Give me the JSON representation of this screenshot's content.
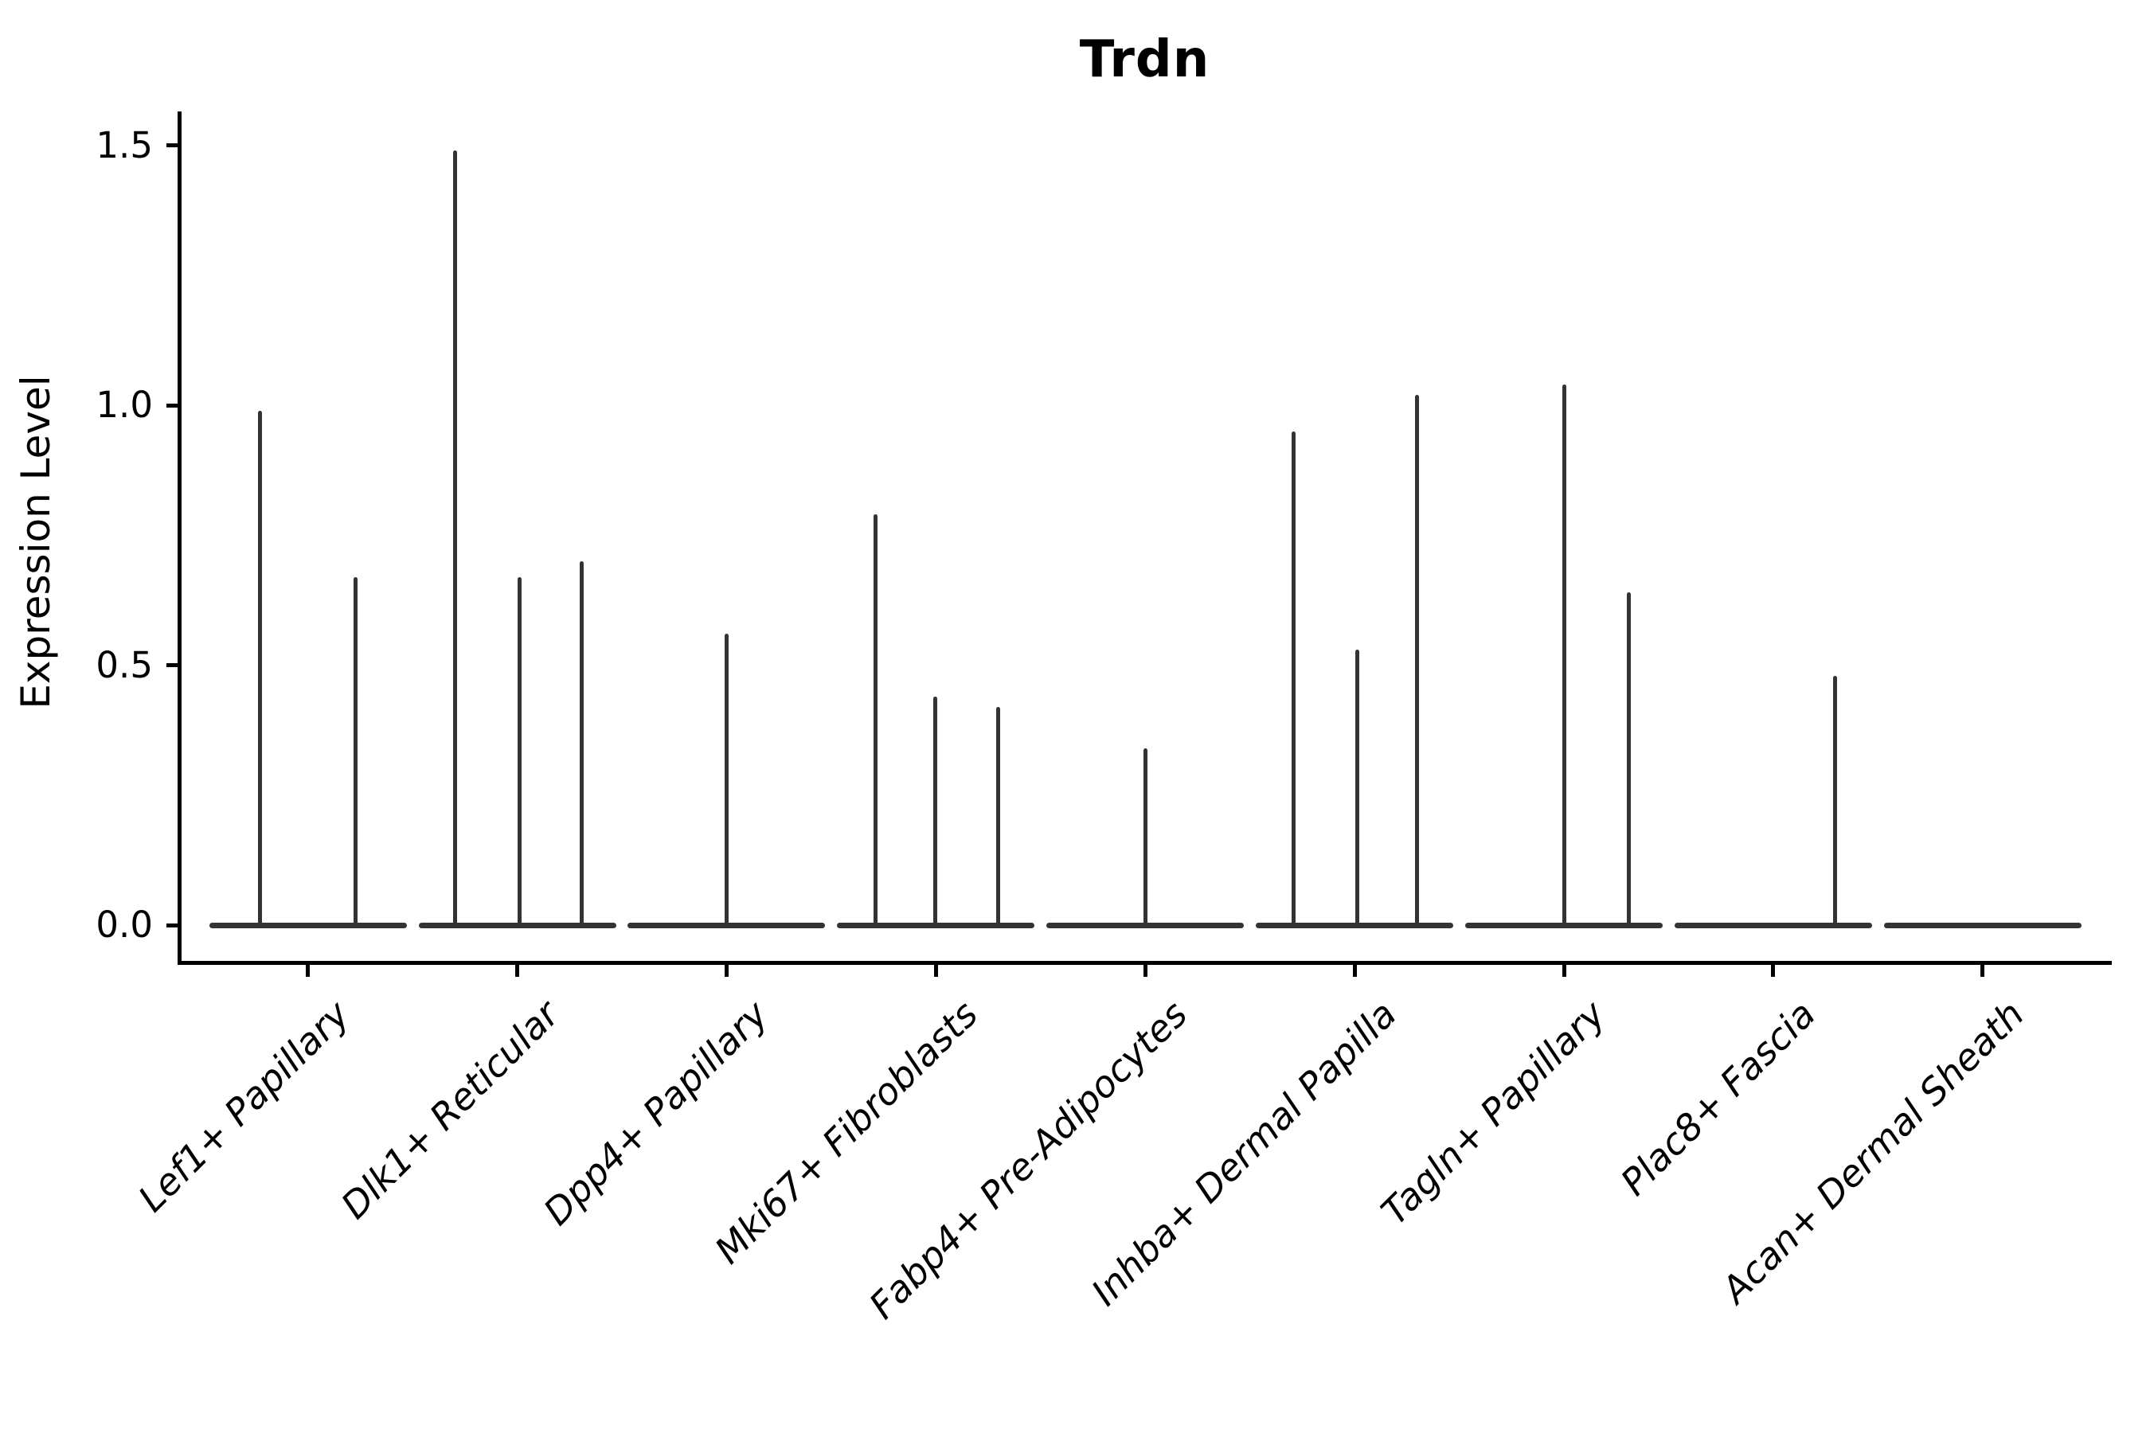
{
  "title": "Trdn",
  "ylabel": "Expression Level",
  "chart_data": {
    "type": "violin",
    "title": "Trdn",
    "xlabel": "",
    "ylabel": "Expression Level",
    "ylim": [
      -0.07,
      1.57
    ],
    "ytick_labels": [
      "0.0",
      "0.5",
      "1.0",
      "1.5"
    ],
    "ytick_values": [
      0.0,
      0.5,
      1.0,
      1.5
    ],
    "grid": false,
    "legend": "none",
    "description": "Violin plot of Trdn expression; each violin is collapsed flat at 0 with thin vertical density spikes at expressed values",
    "categories": [
      "Lef1+ Papillary",
      "Dlk1+ Reticular",
      "Dpp4+ Papillary",
      "Mki67+ Fibroblasts",
      "Fabp4+ Pre-Adipocytes",
      "Inhba+ Dermal Papilla",
      "Tagln+ Papillary",
      "Plac8+ Fascia",
      "Acan+ Dermal Sheath"
    ],
    "series": [
      {
        "name": "Lef1+ Papillary",
        "baseline_value": 0.0,
        "spikes": [
          {
            "offset": -60,
            "value": 0.99
          },
          {
            "offset": 60,
            "value": 0.67
          }
        ]
      },
      {
        "name": "Dlk1+ Reticular",
        "baseline_value": 0.0,
        "spikes": [
          {
            "offset": -78,
            "value": 1.49
          },
          {
            "offset": 3,
            "value": 0.67
          },
          {
            "offset": 81,
            "value": 0.7
          }
        ]
      },
      {
        "name": "Dpp4+ Papillary",
        "baseline_value": 0.0,
        "spikes": [
          {
            "offset": 0,
            "value": 0.56
          }
        ]
      },
      {
        "name": "Mki67+ Fibroblasts",
        "baseline_value": 0.0,
        "spikes": [
          {
            "offset": -76,
            "value": 0.79
          },
          {
            "offset": -1,
            "value": 0.44
          },
          {
            "offset": 78,
            "value": 0.42
          }
        ]
      },
      {
        "name": "Fabp4+ Pre-Adipocytes",
        "baseline_value": 0.0,
        "spikes": [
          {
            "offset": 0,
            "value": 0.34
          }
        ]
      },
      {
        "name": "Inhba+ Dermal Papilla",
        "baseline_value": 0.0,
        "spikes": [
          {
            "offset": -77,
            "value": 0.95
          },
          {
            "offset": 3,
            "value": 0.53
          },
          {
            "offset": 78,
            "value": 1.02
          }
        ]
      },
      {
        "name": "Tagln+ Papillary",
        "baseline_value": 0.0,
        "spikes": [
          {
            "offset": 0,
            "value": 1.04
          },
          {
            "offset": 81,
            "value": 0.64
          }
        ]
      },
      {
        "name": "Plac8+ Fascia",
        "baseline_value": 0.0,
        "spikes": [
          {
            "offset": 78,
            "value": 0.48
          }
        ]
      },
      {
        "name": "Acan+ Dermal Sheath",
        "baseline_value": 0.0,
        "spikes": []
      }
    ],
    "colors": {
      "violin_line": "#333333",
      "axis": "#000000",
      "text": "#000000",
      "background": "#ffffff"
    }
  }
}
